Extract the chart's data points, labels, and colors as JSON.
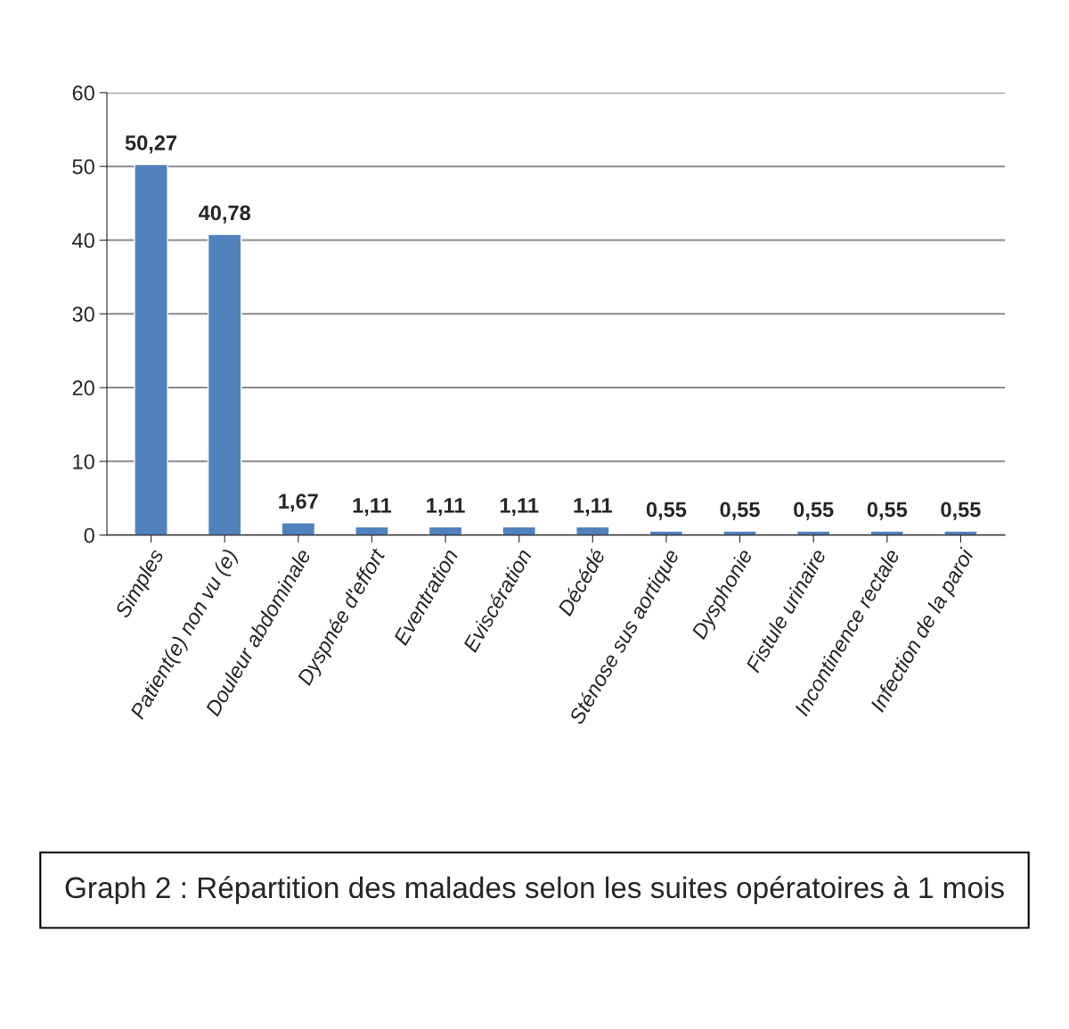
{
  "chart_data": {
    "type": "bar",
    "title": "Graph 2 : Répartition des malades selon les suites opératoires à 1 mois",
    "categories": [
      "Simples",
      "Patient(e) non vu (e)",
      "Douleur abdominale",
      "Dyspnée d'effort",
      "Eventration",
      "Eviscération",
      "Décédé",
      "Sténose sus aortique",
      "Dysphonie",
      "Fistule urinaire",
      "Incontinence rectale",
      "Infection de la paroi"
    ],
    "values": [
      50.27,
      40.78,
      1.67,
      1.11,
      1.11,
      1.11,
      1.11,
      0.55,
      0.55,
      0.55,
      0.55,
      0.55
    ],
    "value_labels": [
      "50,27",
      "40,78",
      "1,67",
      "1,11",
      "1,11",
      "1,11",
      "1,11",
      "0,55",
      "0,55",
      "0,55",
      "0,55",
      "0,55"
    ],
    "color": "#4f81bd",
    "ylim": [
      0,
      60
    ],
    "yticks": [
      0,
      10,
      20,
      30,
      40,
      50,
      60
    ],
    "grid": "y"
  }
}
